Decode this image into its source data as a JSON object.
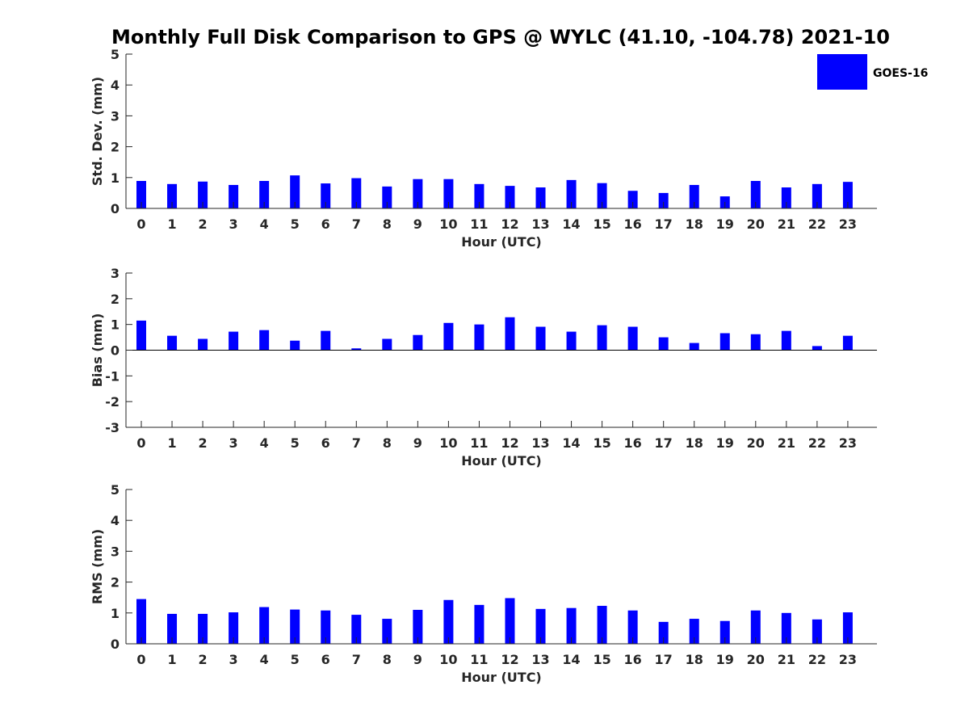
{
  "figure": {
    "title": "Monthly Full Disk Comparison to GPS @ WYLC (41.10, -104.78) 2021-10"
  },
  "legend": {
    "label": "GOES-16",
    "color": "#0000ff",
    "placement": "top-right"
  },
  "chart_data": [
    {
      "type": "bar",
      "id": "stddev",
      "title": "Monthly Full Disk Comparison to GPS @ WYLC (41.10, -104.78) 2021-10",
      "xlabel": "Hour (UTC)",
      "ylabel": "Std. Dev. (mm)",
      "ylim": [
        0,
        5
      ],
      "yticks": [
        0,
        1,
        2,
        3,
        4,
        5
      ],
      "categories": [
        "0",
        "1",
        "2",
        "3",
        "4",
        "5",
        "6",
        "7",
        "8",
        "9",
        "10",
        "11",
        "12",
        "13",
        "14",
        "15",
        "16",
        "17",
        "18",
        "19",
        "20",
        "21",
        "22",
        "23"
      ],
      "series": [
        {
          "name": "GOES-16",
          "color": "#0000ff",
          "values": [
            0.89,
            0.79,
            0.87,
            0.76,
            0.89,
            1.07,
            0.81,
            0.98,
            0.71,
            0.95,
            0.95,
            0.79,
            0.73,
            0.68,
            0.92,
            0.82,
            0.57,
            0.5,
            0.76,
            0.39,
            0.89,
            0.68,
            0.79,
            0.86
          ]
        }
      ]
    },
    {
      "type": "bar",
      "id": "bias",
      "xlabel": "Hour (UTC)",
      "ylabel": "Bias (mm)",
      "ylim": [
        -3,
        3
      ],
      "yticks": [
        -3,
        -2,
        -1,
        0,
        1,
        2,
        3
      ],
      "categories": [
        "0",
        "1",
        "2",
        "3",
        "4",
        "5",
        "6",
        "7",
        "8",
        "9",
        "10",
        "11",
        "12",
        "13",
        "14",
        "15",
        "16",
        "17",
        "18",
        "19",
        "20",
        "21",
        "22",
        "23"
      ],
      "series": [
        {
          "name": "GOES-16",
          "color": "#0000ff",
          "values": [
            1.15,
            0.56,
            0.44,
            0.72,
            0.78,
            0.37,
            0.75,
            0.07,
            0.44,
            0.59,
            1.06,
            1.0,
            1.28,
            0.91,
            0.72,
            0.97,
            0.91,
            0.5,
            0.28,
            0.66,
            0.62,
            0.75,
            0.16,
            0.56
          ]
        }
      ]
    },
    {
      "type": "bar",
      "id": "rms",
      "xlabel": "Hour (UTC)",
      "ylabel": "RMS (mm)",
      "ylim": [
        0,
        5
      ],
      "yticks": [
        0,
        1,
        2,
        3,
        4,
        5
      ],
      "categories": [
        "0",
        "1",
        "2",
        "3",
        "4",
        "5",
        "6",
        "7",
        "8",
        "9",
        "10",
        "11",
        "12",
        "13",
        "14",
        "15",
        "16",
        "17",
        "18",
        "19",
        "20",
        "21",
        "22",
        "23"
      ],
      "series": [
        {
          "name": "GOES-16",
          "color": "#0000ff",
          "values": [
            1.45,
            0.97,
            0.97,
            1.02,
            1.19,
            1.11,
            1.08,
            0.94,
            0.81,
            1.1,
            1.42,
            1.26,
            1.48,
            1.13,
            1.16,
            1.23,
            1.08,
            0.71,
            0.81,
            0.74,
            1.08,
            1.0,
            0.79,
            1.02
          ]
        }
      ]
    }
  ]
}
